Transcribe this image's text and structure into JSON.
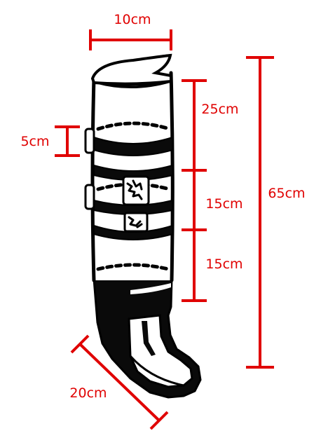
{
  "colors": {
    "dimension": "#e00000",
    "ink": "#000000",
    "background": "#ffffff"
  },
  "dimensions": {
    "top_width": "10cm",
    "ring_height": "5cm",
    "upper_section": "25cm",
    "middle_section": "15cm",
    "lower_section": "15cm",
    "total_height": "65cm",
    "foot_length": "20cm"
  }
}
